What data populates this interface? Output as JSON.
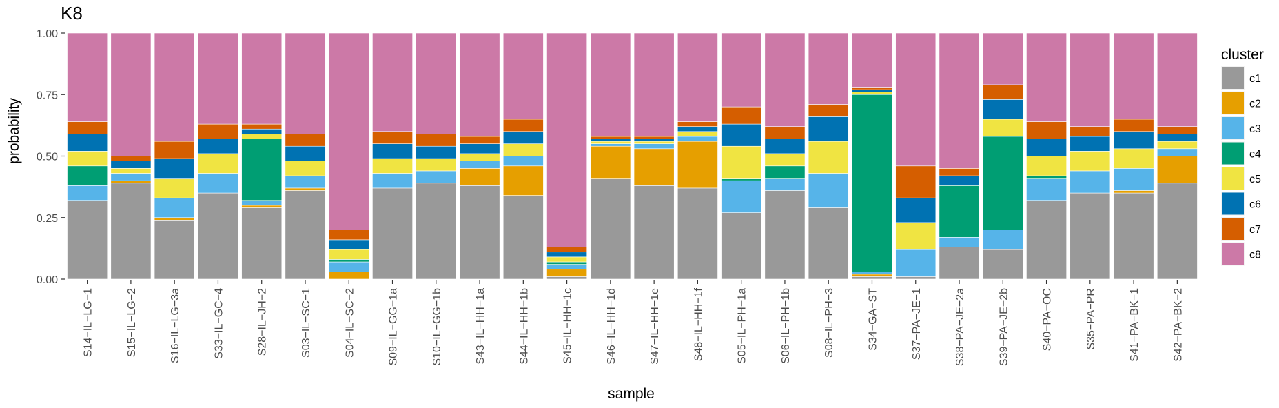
{
  "chart_data": {
    "type": "bar",
    "stacked": true,
    "title": "K8",
    "xlabel": "sample",
    "ylabel": "probability",
    "ylim": [
      0,
      1
    ],
    "yticks": [
      "0.00",
      "0.25",
      "0.50",
      "0.75",
      "1.00"
    ],
    "ytick_values": [
      0,
      0.25,
      0.5,
      0.75,
      1
    ],
    "grid": false,
    "legend": {
      "title": "cluster",
      "position": "right"
    },
    "categories": [
      "S14−IL−LG−1",
      "S15−IL−LG−2",
      "S16−IL−LG−3a",
      "S33−IL−GC−4",
      "S28−IL−JH−2",
      "S03−IL−SC−1",
      "S04−IL−SC−2",
      "S09−IL−GG−1a",
      "S10−IL−GG−1b",
      "S43−IL−HH−1a",
      "S44−IL−HH−1b",
      "S45−IL−HH−1c",
      "S46−IL−HH−1d",
      "S47−IL−HH−1e",
      "S48−IL−HH−1f",
      "S05−IL−PH−1a",
      "S06−IL−PH−1b",
      "S08−IL−PH−3",
      "S34−GA−ST",
      "S37−PA−JE−1",
      "S38−PA−JE−2a",
      "S39−PA−JE−2b",
      "S40−PA−OC",
      "S35−PA−PR",
      "S41−PA−BK−1",
      "S42−PA−BK−2"
    ],
    "series": [
      {
        "name": "c1",
        "color": "#999999",
        "values": [
          0.32,
          0.39,
          0.24,
          0.35,
          0.29,
          0.36,
          0.0,
          0.37,
          0.39,
          0.38,
          0.34,
          0.01,
          0.41,
          0.38,
          0.37,
          0.27,
          0.36,
          0.29,
          0.01,
          0.01,
          0.13,
          0.12,
          0.32,
          0.35,
          0.35,
          0.39
        ]
      },
      {
        "name": "c2",
        "color": "#E69F00",
        "values": [
          0.0,
          0.01,
          0.01,
          0.0,
          0.01,
          0.01,
          0.03,
          0.0,
          0.0,
          0.07,
          0.12,
          0.03,
          0.13,
          0.15,
          0.19,
          0.0,
          0.0,
          0.0,
          0.01,
          0.0,
          0.0,
          0.0,
          0.0,
          0.0,
          0.01,
          0.11
        ]
      },
      {
        "name": "c3",
        "color": "#56B4E9",
        "values": [
          0.06,
          0.03,
          0.08,
          0.08,
          0.02,
          0.05,
          0.04,
          0.06,
          0.05,
          0.03,
          0.04,
          0.02,
          0.01,
          0.02,
          0.02,
          0.13,
          0.05,
          0.14,
          0.01,
          0.11,
          0.04,
          0.08,
          0.09,
          0.09,
          0.09,
          0.03
        ]
      },
      {
        "name": "c4",
        "color": "#009E73",
        "values": [
          0.08,
          0.0,
          0.0,
          0.0,
          0.25,
          0.0,
          0.01,
          0.0,
          0.0,
          0.0,
          0.0,
          0.01,
          0.0,
          0.0,
          0.0,
          0.01,
          0.05,
          0.0,
          0.72,
          0.0,
          0.21,
          0.38,
          0.01,
          0.0,
          0.0,
          0.0
        ]
      },
      {
        "name": "c5",
        "color": "#F0E442",
        "values": [
          0.06,
          0.02,
          0.08,
          0.08,
          0.02,
          0.06,
          0.04,
          0.06,
          0.05,
          0.03,
          0.05,
          0.02,
          0.01,
          0.01,
          0.02,
          0.13,
          0.05,
          0.13,
          0.01,
          0.11,
          0.0,
          0.07,
          0.08,
          0.08,
          0.08,
          0.03
        ]
      },
      {
        "name": "c6",
        "color": "#0072B2",
        "values": [
          0.07,
          0.03,
          0.08,
          0.06,
          0.02,
          0.06,
          0.04,
          0.06,
          0.05,
          0.04,
          0.05,
          0.02,
          0.01,
          0.01,
          0.02,
          0.09,
          0.06,
          0.1,
          0.01,
          0.1,
          0.04,
          0.08,
          0.07,
          0.06,
          0.07,
          0.03
        ]
      },
      {
        "name": "c7",
        "color": "#D55E00",
        "values": [
          0.05,
          0.02,
          0.07,
          0.06,
          0.02,
          0.05,
          0.04,
          0.05,
          0.05,
          0.03,
          0.05,
          0.02,
          0.01,
          0.01,
          0.02,
          0.07,
          0.05,
          0.05,
          0.01,
          0.13,
          0.03,
          0.06,
          0.07,
          0.04,
          0.05,
          0.03
        ]
      },
      {
        "name": "c8",
        "color": "#CC79A7",
        "values": [
          0.36,
          0.5,
          0.44,
          0.37,
          0.37,
          0.41,
          0.8,
          0.4,
          0.41,
          0.42,
          0.35,
          0.87,
          0.42,
          0.42,
          0.36,
          0.3,
          0.38,
          0.29,
          0.22,
          0.54,
          0.55,
          0.21,
          0.36,
          0.38,
          0.35,
          0.38
        ]
      }
    ]
  }
}
